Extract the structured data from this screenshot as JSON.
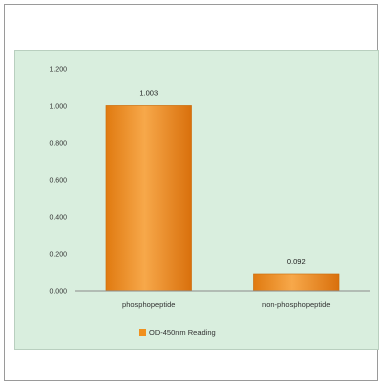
{
  "chart_data": {
    "type": "bar",
    "categories": [
      "phosphopeptide",
      "non-phosphopeptide"
    ],
    "series": [
      {
        "name": "OD-450nm Reading",
        "values": [
          1.003,
          0.092
        ],
        "color": "#f0901e"
      }
    ],
    "data_labels": [
      "1.003",
      "0.092"
    ],
    "ylim": [
      0,
      1.2
    ],
    "yticks": [
      "0.000",
      "0.200",
      "0.400",
      "0.600",
      "0.800",
      "1.000",
      "1.200"
    ],
    "title": "",
    "xlabel": "",
    "ylabel": "",
    "legend_position": "bottom",
    "grid": false,
    "plot_background": "#d9eede"
  }
}
